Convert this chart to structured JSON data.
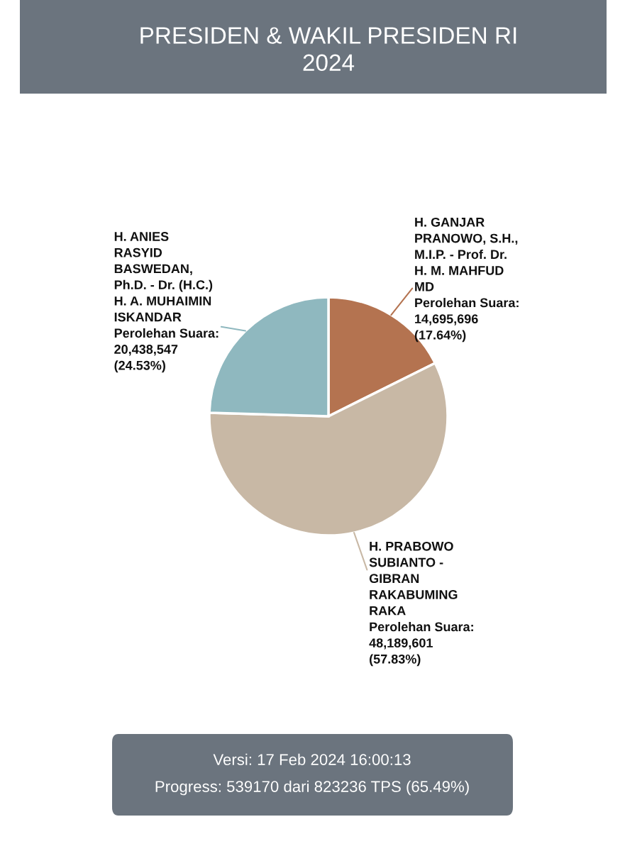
{
  "chart_data": {
    "type": "pie",
    "title": "PRESIDEN & WAKIL PRESIDEN RI\n2024",
    "categories": [
      "H. GANJAR\nPRANOWO, S.H.,\nM.I.P. - Prof. Dr.\nH. M. MAHFUD\nMD",
      "H. PRABOWO\nSUBIANTO -\nGIBRAN\nRAKABUMING\nRAKA",
      "H. ANIES\nRASYID\nBASWEDAN,\nPh.D. - Dr. (H.C.)\nH. A. MUHAIMIN\nISKANDAR"
    ],
    "values": [
      14695696,
      48189601,
      20438547
    ],
    "colors": [
      "#b47350",
      "#c8b8a5",
      "#8fb8bf"
    ],
    "value_labels": [
      "Perolehan Suara:\n14,695,696\n(17.64%)",
      "Perolehan Suara:\n48,189,601\n(57.83%)",
      "Perolehan Suara:\n20,438,547\n(24.53%)"
    ],
    "annotations": [
      "Versi: 17 Feb 2024 16:00:13",
      "Progress: 539170 dari 823236 TPS (65.49%)"
    ]
  }
}
